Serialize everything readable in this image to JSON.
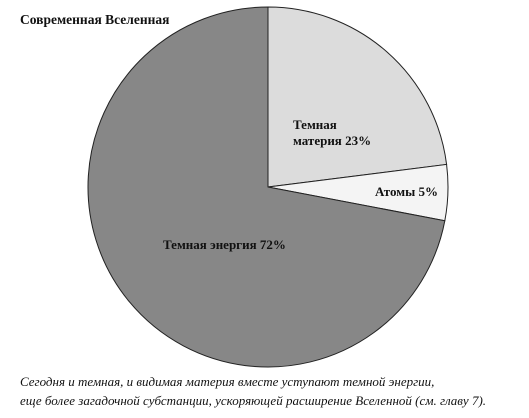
{
  "chart_data": {
    "type": "pie",
    "title": "Современная Вселенная",
    "categories": [
      "Темная материя",
      "Атомы",
      "Темная энергия"
    ],
    "values": [
      23,
      5,
      72
    ],
    "value_labels": [
      "23%",
      "5%",
      "72%"
    ],
    "colors": [
      "#dcdcdc",
      "#f4f4f4",
      "#878787"
    ],
    "caption": [
      "Сегодня и темная, и видимая материя вместе уступают темной энергии,",
      "еще более загадочной субстанции, ускоряющей расширение Вселенной (см. главу 7)."
    ]
  }
}
